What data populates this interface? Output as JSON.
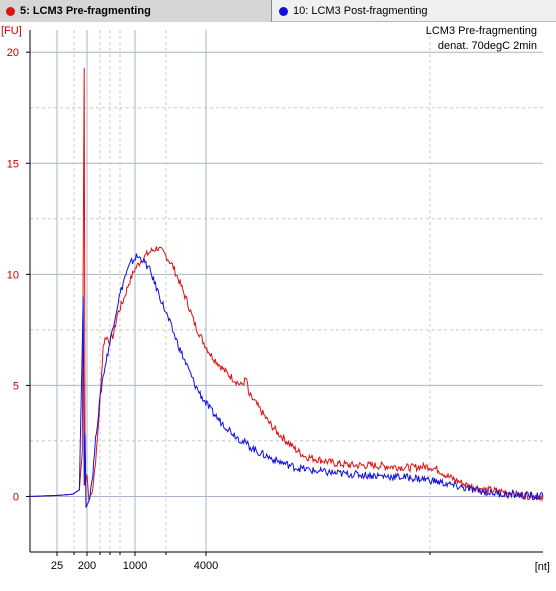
{
  "tabs": [
    {
      "label": "5: LCM3 Pre-fragmenting",
      "color": "#dd1111",
      "active": true
    },
    {
      "label": "10: LCM3 Post-fragmenting",
      "color": "#1111dd",
      "active": false
    }
  ],
  "chart_data": {
    "type": "line",
    "title": "LCM3 Pre-fragmenting",
    "subtitle": "denat. 70degC 2min",
    "ylabel": "[FU]",
    "xlabel": "[nt]",
    "ylim": [
      -2.5,
      21
    ],
    "yticks": [
      0,
      5,
      10,
      15,
      20
    ],
    "xtick_labels": [
      "25",
      "200",
      "1000",
      "4000"
    ],
    "grid": true,
    "series": [
      {
        "name": "5: LCM3 Pre-fragmenting",
        "color": "#dd1111",
        "x_label_note": "position on size axis",
        "points": [
          [
            0,
            0
          ],
          [
            30,
            0.05
          ],
          [
            45,
            0.1
          ],
          [
            52,
            0.3
          ],
          [
            55,
            2
          ],
          [
            57,
            19.3
          ],
          [
            58,
            0.5
          ],
          [
            60,
            1
          ],
          [
            62,
            -0.2
          ],
          [
            66,
            0.4
          ],
          [
            70,
            2
          ],
          [
            74,
            4.5
          ],
          [
            77,
            6.8
          ],
          [
            80,
            7.2
          ],
          [
            84,
            7.0
          ],
          [
            88,
            7.3
          ],
          [
            92,
            8.2
          ],
          [
            98,
            8.8
          ],
          [
            104,
            9.6
          ],
          [
            110,
            10.2
          ],
          [
            118,
            10.7
          ],
          [
            126,
            11.0
          ],
          [
            134,
            11.2
          ],
          [
            142,
            10.9
          ],
          [
            150,
            10.4
          ],
          [
            158,
            9.6
          ],
          [
            166,
            8.7
          ],
          [
            174,
            7.7
          ],
          [
            182,
            7.0
          ],
          [
            190,
            6.4
          ],
          [
            198,
            6.0
          ],
          [
            206,
            5.6
          ],
          [
            214,
            5.3
          ],
          [
            222,
            5.0
          ],
          [
            228,
            5.3
          ],
          [
            230,
            4.6
          ],
          [
            236,
            4.3
          ],
          [
            244,
            3.8
          ],
          [
            252,
            3.3
          ],
          [
            260,
            2.9
          ],
          [
            270,
            2.5
          ],
          [
            280,
            2.1
          ],
          [
            290,
            1.8
          ],
          [
            300,
            1.7
          ],
          [
            320,
            1.5
          ],
          [
            340,
            1.4
          ],
          [
            360,
            1.4
          ],
          [
            380,
            1.35
          ],
          [
            400,
            1.3
          ],
          [
            420,
            1.35
          ],
          [
            430,
            1.2
          ],
          [
            440,
            0.9
          ],
          [
            460,
            0.5
          ],
          [
            480,
            0.3
          ],
          [
            500,
            0.2
          ],
          [
            520,
            0.05
          ],
          [
            540,
            0
          ]
        ]
      },
      {
        "name": "10: LCM3 Post-fragmenting",
        "color": "#1111dd",
        "points": [
          [
            0,
            0
          ],
          [
            30,
            0.05
          ],
          [
            45,
            0.1
          ],
          [
            52,
            0.3
          ],
          [
            56,
            9.0
          ],
          [
            57,
            0.5
          ],
          [
            58,
            2.8
          ],
          [
            59,
            -0.5
          ],
          [
            62,
            -0.2
          ],
          [
            66,
            1
          ],
          [
            70,
            3
          ],
          [
            76,
            5.2
          ],
          [
            82,
            6.5
          ],
          [
            88,
            7.8
          ],
          [
            94,
            9.0
          ],
          [
            100,
            9.9
          ],
          [
            106,
            10.5
          ],
          [
            112,
            10.8
          ],
          [
            118,
            10.7
          ],
          [
            126,
            10.2
          ],
          [
            134,
            9.3
          ],
          [
            142,
            8.4
          ],
          [
            150,
            7.5
          ],
          [
            158,
            6.6
          ],
          [
            166,
            5.8
          ],
          [
            174,
            5.0
          ],
          [
            182,
            4.4
          ],
          [
            190,
            3.9
          ],
          [
            200,
            3.4
          ],
          [
            210,
            3.0
          ],
          [
            220,
            2.6
          ],
          [
            230,
            2.3
          ],
          [
            240,
            2.0
          ],
          [
            250,
            1.8
          ],
          [
            260,
            1.6
          ],
          [
            270,
            1.45
          ],
          [
            280,
            1.3
          ],
          [
            300,
            1.15
          ],
          [
            320,
            1.05
          ],
          [
            340,
            1.0
          ],
          [
            360,
            0.95
          ],
          [
            380,
            0.9
          ],
          [
            400,
            0.85
          ],
          [
            420,
            0.75
          ],
          [
            440,
            0.55
          ],
          [
            460,
            0.35
          ],
          [
            480,
            0.2
          ],
          [
            500,
            0.1
          ],
          [
            520,
            0.05
          ],
          [
            540,
            0
          ]
        ]
      }
    ]
  }
}
